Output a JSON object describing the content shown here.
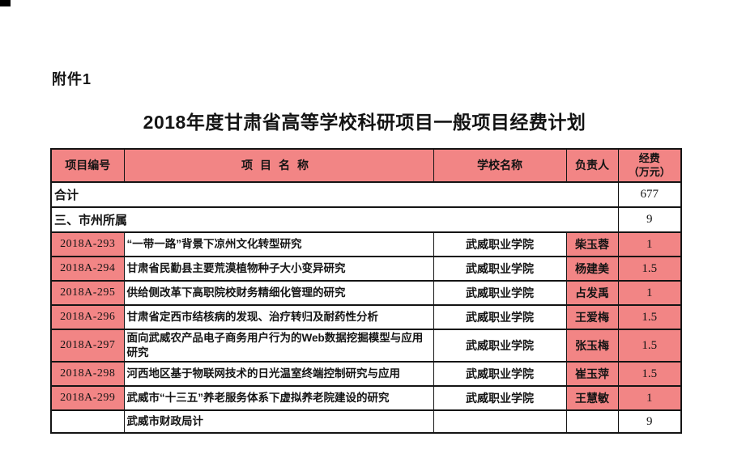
{
  "page": {
    "attachment_label": "附件1",
    "title": "2018年度甘肃省高等学校科研项目一般项目经费计划"
  },
  "colors": {
    "highlight_pink": "#f28585",
    "border_black": "#141414"
  },
  "table": {
    "header": {
      "code": "项目编号",
      "name": "项目名称",
      "school": "学校名称",
      "leader": "负责人",
      "funding_line1": "经费",
      "funding_line2": "（万元）"
    },
    "rows": [
      {
        "type": "section",
        "label": "合计",
        "funding": "677"
      },
      {
        "type": "section",
        "label": "三、市州所属",
        "funding": "9"
      },
      {
        "type": "data",
        "code": "2018A-293",
        "name": "“一带一路”背景下凉州文化转型研究",
        "school": "武威职业学院",
        "leader": "柴玉蓉",
        "funding": "1"
      },
      {
        "type": "data",
        "code": "2018A-294",
        "name": "甘肃省民勤县主要荒漠植物种子大小变异研究",
        "school": "武威职业学院",
        "leader": "杨建美",
        "funding": "1.5"
      },
      {
        "type": "data",
        "code": "2018A-295",
        "name": "供给侧改革下高职院校财务精细化管理的研究",
        "school": "武威职业学院",
        "leader": "占发禹",
        "funding": "1"
      },
      {
        "type": "data",
        "code": "2018A-296",
        "name": "甘肃省定西市结核病的发现、治疗转归及耐药性分析",
        "school": "武威职业学院",
        "leader": "王爱梅",
        "funding": "1.5"
      },
      {
        "type": "data",
        "code": "2018A-297",
        "name": "面向武威农产品电子商务用户行为的Web数据挖掘模型与应用研究",
        "school": "武威职业学院",
        "leader": "张玉梅",
        "funding": "1.5"
      },
      {
        "type": "data",
        "code": "2018A-298",
        "name": "河西地区基于物联网技术的日光温室终端控制研究与应用",
        "school": "武威职业学院",
        "leader": "崔玉萍",
        "funding": "1.5"
      },
      {
        "type": "data",
        "code": "2018A-299",
        "name": "武威市“十三五”养老服务体系下虚拟养老院建设的研究",
        "school": "武威职业学院",
        "leader": "王慧敏",
        "funding": "1"
      },
      {
        "type": "subtotal",
        "code": "",
        "name": "武威市财政局计",
        "school": "",
        "leader": "",
        "funding": "9"
      }
    ]
  }
}
